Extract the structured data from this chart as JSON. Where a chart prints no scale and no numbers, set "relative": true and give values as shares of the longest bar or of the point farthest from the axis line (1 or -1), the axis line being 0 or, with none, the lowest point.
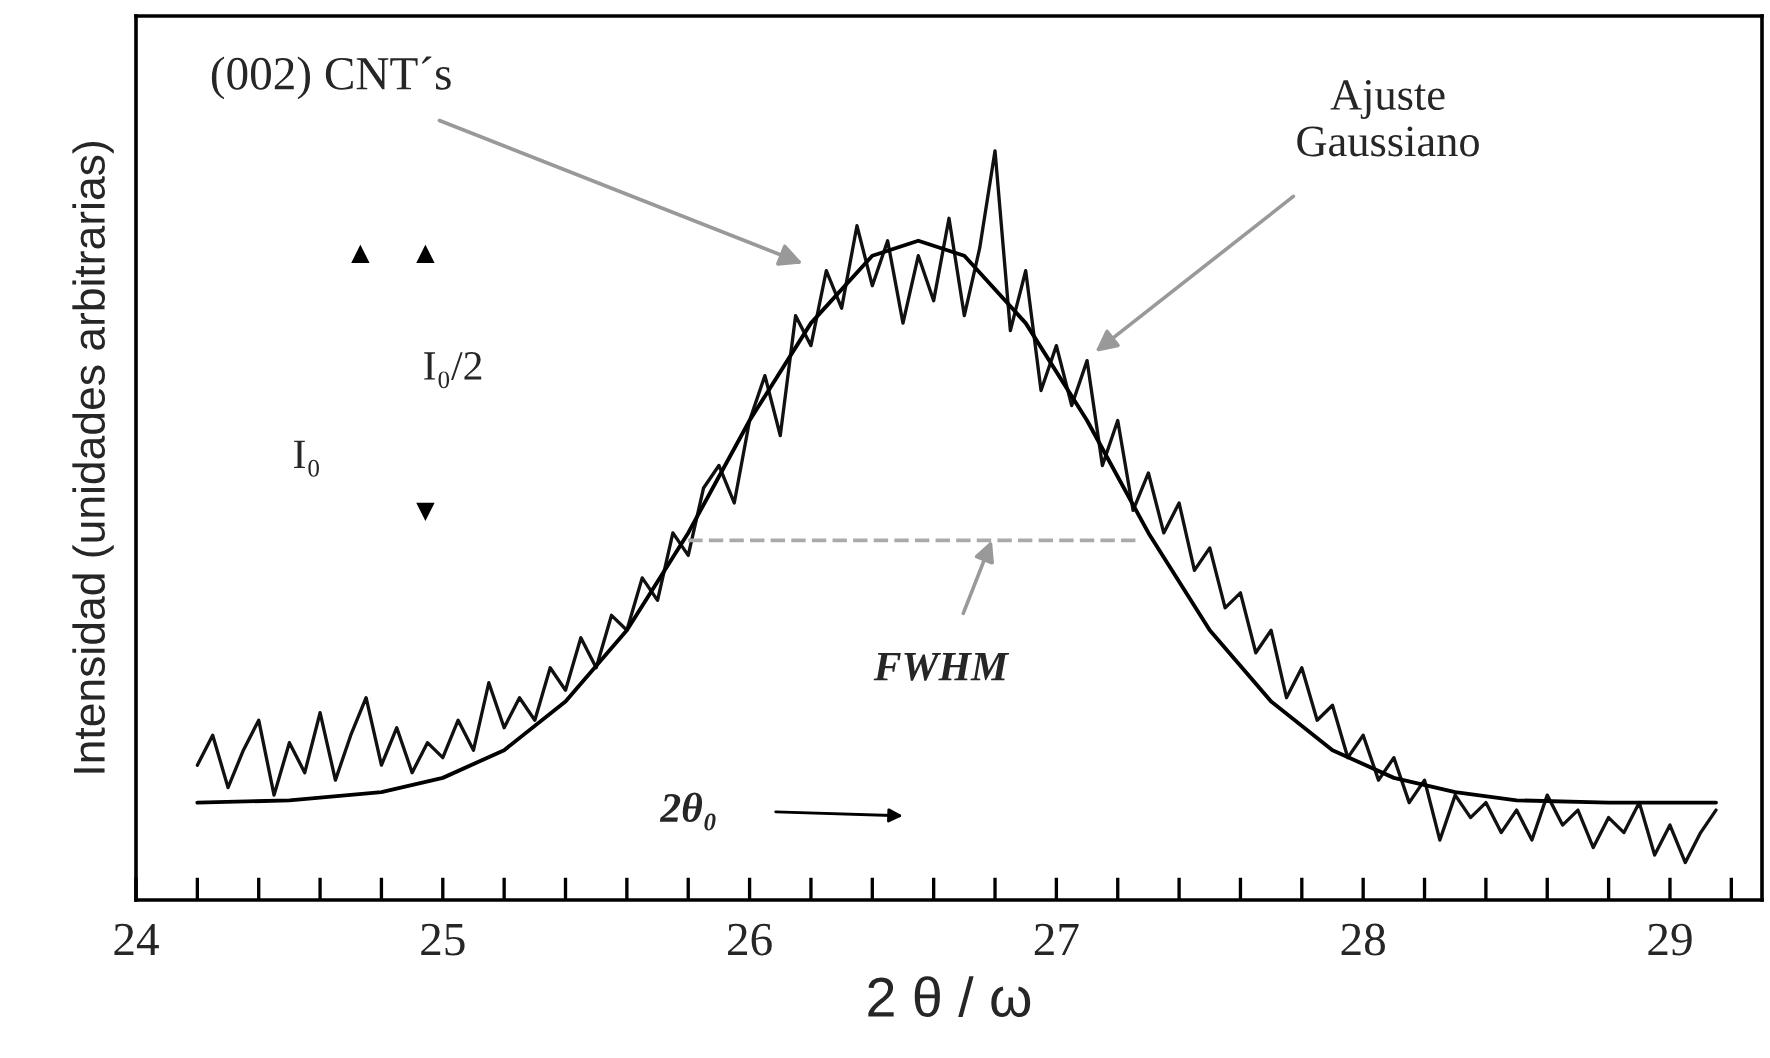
{
  "chart_data": {
    "type": "line",
    "relative": true,
    "xlabel": "2 θ / ω",
    "ylabel": "Intensidad (unidades arbitrarias)",
    "xlim": [
      24,
      29.3
    ],
    "xticks": [
      24,
      {
        "value": 24.2,
        "label": null
      },
      {
        "value": 24.4,
        "label": null
      },
      {
        "value": 24.6,
        "label": null
      },
      {
        "value": 24.8,
        "label": null
      },
      25,
      {
        "value": 25.2,
        "label": null
      },
      {
        "value": 25.4,
        "label": null
      },
      {
        "value": 25.6,
        "label": null
      },
      {
        "value": 25.8,
        "label": null
      },
      26,
      {
        "value": 26.2,
        "label": null
      },
      {
        "value": 26.4,
        "label": null
      },
      {
        "value": 26.6,
        "label": null
      },
      {
        "value": 26.8,
        "label": null
      },
      27,
      {
        "value": 27.2,
        "label": null
      },
      {
        "value": 27.4,
        "label": null
      },
      {
        "value": 27.6,
        "label": null
      },
      {
        "value": 27.8,
        "label": null
      },
      28,
      {
        "value": 28.2,
        "label": null
      },
      {
        "value": 28.4,
        "label": null
      },
      {
        "value": 28.6,
        "label": null
      },
      {
        "value": 28.8,
        "label": null
      },
      29,
      {
        "value": 29.2,
        "label": null
      }
    ],
    "tick_labels": "x",
    "grid": false,
    "series": [
      {
        "color": "#111111",
        "x": [
          24.2,
          24.25,
          24.3,
          24.35,
          24.4,
          24.45,
          24.5,
          24.55,
          24.6,
          24.65,
          24.7,
          24.75,
          24.8,
          24.85,
          24.9,
          24.95,
          25.0,
          25.05,
          25.1,
          25.15,
          25.2,
          25.25,
          25.3,
          25.35,
          25.4,
          25.45,
          25.5,
          25.55,
          25.6,
          25.65,
          25.7,
          25.75,
          25.8,
          25.85,
          25.9,
          25.95,
          26.0,
          26.05,
          26.1,
          26.15,
          26.2,
          26.25,
          26.3,
          26.35,
          26.4,
          26.45,
          26.5,
          26.55,
          26.6,
          26.65,
          26.7,
          26.75,
          26.8,
          26.85,
          26.9,
          26.95,
          27.0,
          27.05,
          27.1,
          27.15,
          27.2,
          27.25,
          27.3,
          27.35,
          27.4,
          27.45,
          27.5,
          27.55,
          27.6,
          27.65,
          27.7,
          27.75,
          27.8,
          27.85,
          27.9,
          27.95,
          28.0,
          28.05,
          28.1,
          28.15,
          28.2,
          28.25,
          28.3,
          28.35,
          28.4,
          28.45,
          28.5,
          28.55,
          28.6,
          28.65,
          28.7,
          28.75,
          28.8,
          28.85,
          28.9,
          28.95,
          29.0,
          29.05,
          29.1,
          29.15
        ],
        "values": [
          0.18,
          0.22,
          0.15,
          0.2,
          0.24,
          0.14,
          0.21,
          0.17,
          0.25,
          0.16,
          0.22,
          0.27,
          0.18,
          0.23,
          0.17,
          0.21,
          0.19,
          0.24,
          0.2,
          0.29,
          0.23,
          0.27,
          0.24,
          0.31,
          0.28,
          0.35,
          0.31,
          0.38,
          0.36,
          0.43,
          0.4,
          0.49,
          0.46,
          0.55,
          0.58,
          0.53,
          0.64,
          0.7,
          0.62,
          0.78,
          0.74,
          0.84,
          0.79,
          0.9,
          0.82,
          0.88,
          0.77,
          0.86,
          0.8,
          0.91,
          0.78,
          0.87,
          1.0,
          0.76,
          0.84,
          0.68,
          0.74,
          0.66,
          0.72,
          0.58,
          0.64,
          0.52,
          0.57,
          0.49,
          0.53,
          0.44,
          0.47,
          0.39,
          0.41,
          0.33,
          0.36,
          0.27,
          0.31,
          0.24,
          0.26,
          0.19,
          0.22,
          0.16,
          0.19,
          0.13,
          0.16,
          0.08,
          0.14,
          0.11,
          0.13,
          0.09,
          0.12,
          0.08,
          0.14,
          0.1,
          0.12,
          0.07,
          0.11,
          0.09,
          0.13,
          0.06,
          0.1,
          0.05,
          0.09,
          0.12
        ]
      },
      {
        "color": "#000000",
        "x": [
          24.2,
          24.5,
          24.8,
          25.0,
          25.2,
          25.4,
          25.6,
          25.8,
          26.0,
          26.2,
          26.4,
          26.55,
          26.7,
          26.9,
          27.1,
          27.3,
          27.5,
          27.7,
          27.9,
          28.1,
          28.3,
          28.5,
          28.8,
          29.15
        ],
        "values": [
          0.13,
          0.133,
          0.144,
          0.163,
          0.2,
          0.265,
          0.36,
          0.49,
          0.64,
          0.77,
          0.86,
          0.88,
          0.86,
          0.77,
          0.64,
          0.49,
          0.36,
          0.265,
          0.2,
          0.163,
          0.144,
          0.133,
          0.13,
          0.13
        ]
      },
      {
        "color": "#aaaaaa",
        "line_style": "dashed",
        "x": [
          25.8,
          27.27
        ],
        "values": [
          0.48,
          0.48
        ]
      }
    ],
    "annotations": [
      "(002) CNT´s",
      "Ajuste\nGaussiano",
      {
        "text": "FWHM",
        "x": 26.79,
        "y": 0.48
      },
      "I₀/2",
      "I₀",
      "2θ₀"
    ]
  }
}
